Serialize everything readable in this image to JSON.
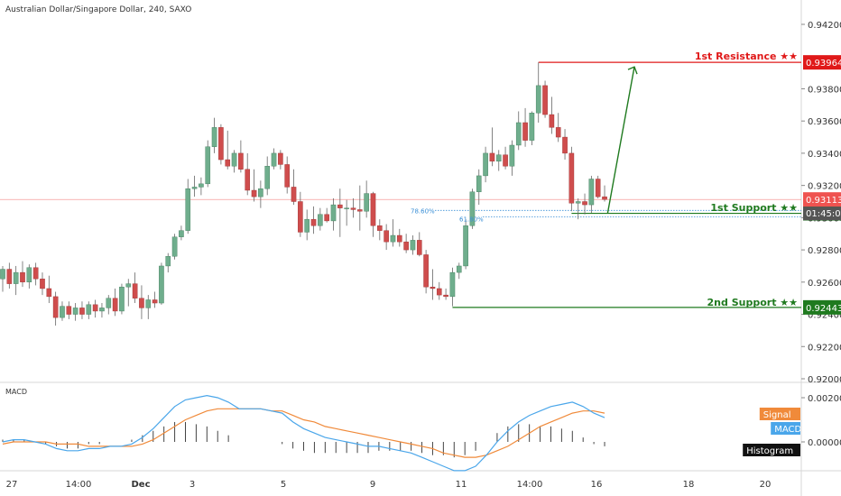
{
  "header": {
    "symbol": "Australian Dollar/Singapore Dollar, 240, SAXO"
  },
  "macd_panel": {
    "title": "MACD"
  },
  "colors": {
    "up": "#6fae8d",
    "down": "#cf4d4d",
    "resistance": "#e01919",
    "support": "#1f7a1f",
    "current": "#ef5350",
    "fib": "#3a8fd6",
    "macd_line": "#4aa6ea",
    "signal_line": "#f08a3a",
    "hist": "#444444"
  },
  "chart_data": [
    {
      "type": "candlestick",
      "title": "",
      "xlabel": "",
      "ylabel": "",
      "ylim": [
        0.92,
        0.943
      ],
      "y_ticks": [
        "0.94200",
        "0.93800",
        "0.93600",
        "0.93400",
        "0.93200",
        "0.93000",
        "0.92800",
        "0.92600",
        "0.92400",
        "0.92200",
        "0.92000"
      ],
      "x_tick_labels": [
        "27",
        "14:00",
        "Dec",
        "3",
        "5",
        "9",
        "11",
        "14:00",
        "16",
        "18",
        "20"
      ],
      "candles": [
        {
          "o": 0.9262,
          "h": 0.927,
          "l": 0.9254,
          "c": 0.9268
        },
        {
          "o": 0.9268,
          "h": 0.9272,
          "l": 0.9256,
          "c": 0.9259
        },
        {
          "o": 0.9259,
          "h": 0.927,
          "l": 0.9252,
          "c": 0.9266
        },
        {
          "o": 0.9266,
          "h": 0.9273,
          "l": 0.9257,
          "c": 0.926
        },
        {
          "o": 0.926,
          "h": 0.9271,
          "l": 0.9256,
          "c": 0.9269
        },
        {
          "o": 0.9269,
          "h": 0.9272,
          "l": 0.9258,
          "c": 0.9262
        },
        {
          "o": 0.9262,
          "h": 0.9266,
          "l": 0.9252,
          "c": 0.9256
        },
        {
          "o": 0.9256,
          "h": 0.9264,
          "l": 0.9247,
          "c": 0.9251
        },
        {
          "o": 0.9251,
          "h": 0.9254,
          "l": 0.9233,
          "c": 0.9238
        },
        {
          "o": 0.9238,
          "h": 0.9248,
          "l": 0.9236,
          "c": 0.9245
        },
        {
          "o": 0.9245,
          "h": 0.9248,
          "l": 0.9237,
          "c": 0.924
        },
        {
          "o": 0.924,
          "h": 0.9247,
          "l": 0.9236,
          "c": 0.9244
        },
        {
          "o": 0.9244,
          "h": 0.9248,
          "l": 0.9237,
          "c": 0.924
        },
        {
          "o": 0.924,
          "h": 0.9248,
          "l": 0.9237,
          "c": 0.9246
        },
        {
          "o": 0.9246,
          "h": 0.9249,
          "l": 0.9238,
          "c": 0.9242
        },
        {
          "o": 0.9242,
          "h": 0.9247,
          "l": 0.9238,
          "c": 0.9244
        },
        {
          "o": 0.9244,
          "h": 0.9252,
          "l": 0.924,
          "c": 0.925
        },
        {
          "o": 0.925,
          "h": 0.9256,
          "l": 0.9239,
          "c": 0.9242
        },
        {
          "o": 0.9242,
          "h": 0.9259,
          "l": 0.924,
          "c": 0.9257
        },
        {
          "o": 0.9257,
          "h": 0.9262,
          "l": 0.9245,
          "c": 0.9259
        },
        {
          "o": 0.9259,
          "h": 0.9266,
          "l": 0.9247,
          "c": 0.925
        },
        {
          "o": 0.925,
          "h": 0.9258,
          "l": 0.9237,
          "c": 0.9244
        },
        {
          "o": 0.9244,
          "h": 0.9252,
          "l": 0.9237,
          "c": 0.9249
        },
        {
          "o": 0.9249,
          "h": 0.9254,
          "l": 0.9244,
          "c": 0.9247
        },
        {
          "o": 0.9247,
          "h": 0.9272,
          "l": 0.9246,
          "c": 0.927
        },
        {
          "o": 0.927,
          "h": 0.9278,
          "l": 0.9266,
          "c": 0.9276
        },
        {
          "o": 0.9276,
          "h": 0.929,
          "l": 0.9274,
          "c": 0.9288
        },
        {
          "o": 0.9288,
          "h": 0.9295,
          "l": 0.9286,
          "c": 0.9292
        },
        {
          "o": 0.9292,
          "h": 0.9324,
          "l": 0.929,
          "c": 0.9318
        },
        {
          "o": 0.9318,
          "h": 0.9326,
          "l": 0.9313,
          "c": 0.9319
        },
        {
          "o": 0.9319,
          "h": 0.9325,
          "l": 0.9314,
          "c": 0.9321
        },
        {
          "o": 0.9321,
          "h": 0.9348,
          "l": 0.9319,
          "c": 0.9344
        },
        {
          "o": 0.9344,
          "h": 0.9362,
          "l": 0.934,
          "c": 0.9356
        },
        {
          "o": 0.9356,
          "h": 0.9358,
          "l": 0.9333,
          "c": 0.9336
        },
        {
          "o": 0.9336,
          "h": 0.9354,
          "l": 0.933,
          "c": 0.9332
        },
        {
          "o": 0.9332,
          "h": 0.9342,
          "l": 0.9328,
          "c": 0.934
        },
        {
          "o": 0.934,
          "h": 0.9348,
          "l": 0.9328,
          "c": 0.933
        },
        {
          "o": 0.933,
          "h": 0.934,
          "l": 0.9314,
          "c": 0.9317
        },
        {
          "o": 0.9317,
          "h": 0.933,
          "l": 0.931,
          "c": 0.9313
        },
        {
          "o": 0.9313,
          "h": 0.9323,
          "l": 0.9306,
          "c": 0.9318
        },
        {
          "o": 0.9318,
          "h": 0.9338,
          "l": 0.9314,
          "c": 0.9332
        },
        {
          "o": 0.9332,
          "h": 0.9343,
          "l": 0.933,
          "c": 0.934
        },
        {
          "o": 0.934,
          "h": 0.9342,
          "l": 0.933,
          "c": 0.9333
        },
        {
          "o": 0.9333,
          "h": 0.9338,
          "l": 0.9315,
          "c": 0.9319
        },
        {
          "o": 0.9319,
          "h": 0.933,
          "l": 0.9308,
          "c": 0.931
        },
        {
          "o": 0.931,
          "h": 0.9316,
          "l": 0.9288,
          "c": 0.9291
        },
        {
          "o": 0.9291,
          "h": 0.9305,
          "l": 0.9286,
          "c": 0.9299
        },
        {
          "o": 0.9299,
          "h": 0.9307,
          "l": 0.929,
          "c": 0.9295
        },
        {
          "o": 0.9295,
          "h": 0.9306,
          "l": 0.9292,
          "c": 0.9302
        },
        {
          "o": 0.9302,
          "h": 0.9306,
          "l": 0.9297,
          "c": 0.9298
        },
        {
          "o": 0.9298,
          "h": 0.9312,
          "l": 0.9292,
          "c": 0.9308
        },
        {
          "o": 0.9308,
          "h": 0.9318,
          "l": 0.9288,
          "c": 0.9306
        },
        {
          "o": 0.9306,
          "h": 0.9311,
          "l": 0.9295,
          "c": 0.9306
        },
        {
          "o": 0.9306,
          "h": 0.9312,
          "l": 0.93,
          "c": 0.9305
        },
        {
          "o": 0.9305,
          "h": 0.932,
          "l": 0.9292,
          "c": 0.9304
        },
        {
          "o": 0.9304,
          "h": 0.9323,
          "l": 0.93,
          "c": 0.9315
        },
        {
          "o": 0.9315,
          "h": 0.9316,
          "l": 0.9288,
          "c": 0.9295
        },
        {
          "o": 0.9295,
          "h": 0.9299,
          "l": 0.9286,
          "c": 0.9292
        },
        {
          "o": 0.9292,
          "h": 0.9296,
          "l": 0.928,
          "c": 0.9285
        },
        {
          "o": 0.9285,
          "h": 0.9299,
          "l": 0.9282,
          "c": 0.9289
        },
        {
          "o": 0.9289,
          "h": 0.9293,
          "l": 0.9282,
          "c": 0.9285
        },
        {
          "o": 0.9285,
          "h": 0.929,
          "l": 0.9278,
          "c": 0.928
        },
        {
          "o": 0.928,
          "h": 0.9289,
          "l": 0.9277,
          "c": 0.9286
        },
        {
          "o": 0.9286,
          "h": 0.9291,
          "l": 0.9276,
          "c": 0.9277
        },
        {
          "o": 0.9277,
          "h": 0.928,
          "l": 0.9253,
          "c": 0.9257
        },
        {
          "o": 0.9257,
          "h": 0.9268,
          "l": 0.9249,
          "c": 0.9256
        },
        {
          "o": 0.9256,
          "h": 0.926,
          "l": 0.9249,
          "c": 0.9252
        },
        {
          "o": 0.9252,
          "h": 0.9256,
          "l": 0.9249,
          "c": 0.9251
        },
        {
          "o": 0.9251,
          "h": 0.9269,
          "l": 0.9245,
          "c": 0.9266
        },
        {
          "o": 0.9266,
          "h": 0.9272,
          "l": 0.9262,
          "c": 0.927
        },
        {
          "o": 0.927,
          "h": 0.9299,
          "l": 0.9268,
          "c": 0.9295
        },
        {
          "o": 0.9295,
          "h": 0.9318,
          "l": 0.9293,
          "c": 0.9316
        },
        {
          "o": 0.9316,
          "h": 0.933,
          "l": 0.9308,
          "c": 0.9326
        },
        {
          "o": 0.9326,
          "h": 0.9344,
          "l": 0.9322,
          "c": 0.934
        },
        {
          "o": 0.934,
          "h": 0.9356,
          "l": 0.9332,
          "c": 0.9335
        },
        {
          "o": 0.9335,
          "h": 0.9342,
          "l": 0.9329,
          "c": 0.9339
        },
        {
          "o": 0.9339,
          "h": 0.9344,
          "l": 0.933,
          "c": 0.9332
        },
        {
          "o": 0.9332,
          "h": 0.9348,
          "l": 0.9326,
          "c": 0.9345
        },
        {
          "o": 0.9345,
          "h": 0.9366,
          "l": 0.9342,
          "c": 0.9359
        },
        {
          "o": 0.9359,
          "h": 0.9368,
          "l": 0.9344,
          "c": 0.9348
        },
        {
          "o": 0.9348,
          "h": 0.9366,
          "l": 0.9345,
          "c": 0.9365
        },
        {
          "o": 0.9365,
          "h": 0.93964,
          "l": 0.9359,
          "c": 0.9382
        },
        {
          "o": 0.9382,
          "h": 0.9385,
          "l": 0.9362,
          "c": 0.9364
        },
        {
          "o": 0.9364,
          "h": 0.9375,
          "l": 0.9352,
          "c": 0.9356
        },
        {
          "o": 0.9356,
          "h": 0.9365,
          "l": 0.9347,
          "c": 0.935
        },
        {
          "o": 0.935,
          "h": 0.9355,
          "l": 0.9336,
          "c": 0.934
        },
        {
          "o": 0.934,
          "h": 0.9344,
          "l": 0.9304,
          "c": 0.9309
        },
        {
          "o": 0.9309,
          "h": 0.9312,
          "l": 0.9299,
          "c": 0.931
        },
        {
          "o": 0.931,
          "h": 0.9315,
          "l": 0.9302,
          "c": 0.9308
        },
        {
          "o": 0.9308,
          "h": 0.9326,
          "l": 0.9303,
          "c": 0.9324
        },
        {
          "o": 0.9324,
          "h": 0.9326,
          "l": 0.9312,
          "c": 0.9313
        },
        {
          "o": 0.9313,
          "h": 0.932,
          "l": 0.931,
          "c": 0.93113
        }
      ],
      "levels": [
        {
          "name": "1st Resistance ★★",
          "value": 0.93964,
          "label": "0.93964",
          "kind": "resistance"
        },
        {
          "name": "1st Support ★★",
          "value": 0.93027,
          "label": "0.93027",
          "kind": "support"
        },
        {
          "name": "2nd Support ★★",
          "value": 0.92443,
          "label": "0.92443",
          "kind": "support"
        }
      ],
      "fib_labels": [
        "78.60%",
        "61.80%"
      ],
      "current_price": {
        "value": 0.93113,
        "label": "0.93113",
        "countdown": "01:45:08"
      }
    },
    {
      "type": "line",
      "title": "MACD",
      "ylim": [
        -0.0026,
        0.0026
      ],
      "y_ticks": [
        "0.00200",
        "0.00000"
      ],
      "legend": [
        "Signal",
        "MACD",
        "Histogram"
      ],
      "macd": [
        0.0,
        0.0001,
        0.0001,
        0.0,
        -0.0001,
        -0.0003,
        -0.0004,
        -0.0004,
        -0.0003,
        -0.0003,
        -0.0002,
        -0.0002,
        -0.0001,
        0.0002,
        0.0006,
        0.0011,
        0.0016,
        0.0019,
        0.002,
        0.0021,
        0.002,
        0.0018,
        0.0015,
        0.0015,
        0.0015,
        0.0014,
        0.0013,
        0.0009,
        0.0006,
        0.0004,
        0.0002,
        0.0001,
        0.0,
        -0.0001,
        -0.0002,
        -0.0002,
        -0.0003,
        -0.0004,
        -0.0005,
        -0.0007,
        -0.0009,
        -0.0011,
        -0.0013,
        -0.0013,
        -0.0011,
        -0.0006,
        0.0,
        0.0005,
        0.0009,
        0.0012,
        0.0014,
        0.0016,
        0.0017,
        0.0018,
        0.0016,
        0.0013,
        0.0011
      ],
      "signal": [
        -0.0001,
        0.0,
        0.0,
        0.0,
        0.0,
        -0.0001,
        -0.0001,
        -0.0001,
        -0.0002,
        -0.0002,
        -0.0002,
        -0.0002,
        -0.0002,
        -0.0001,
        0.0001,
        0.0004,
        0.0007,
        0.001,
        0.0012,
        0.0014,
        0.0015,
        0.0015,
        0.0015,
        0.0015,
        0.0015,
        0.0014,
        0.0014,
        0.0012,
        0.001,
        0.0009,
        0.0007,
        0.0006,
        0.0005,
        0.0004,
        0.0003,
        0.0002,
        0.0001,
        0.0,
        -0.0001,
        -0.0002,
        -0.0003,
        -0.0005,
        -0.0006,
        -0.0007,
        -0.0007,
        -0.0006,
        -0.0004,
        -0.0002,
        0.0001,
        0.0004,
        0.0007,
        0.0009,
        0.0011,
        0.0013,
        0.0014,
        0.0014,
        0.0013
      ],
      "histogram": [
        0.0001,
        0.0001,
        0.0001,
        0.0,
        -0.0001,
        -0.0002,
        -0.0003,
        -0.0003,
        -0.0001,
        -0.0001,
        0.0,
        0.0,
        0.0001,
        0.0003,
        0.0005,
        0.0007,
        0.0009,
        0.0009,
        0.0008,
        0.0007,
        0.0005,
        0.0003,
        0.0,
        0.0,
        0.0,
        0.0,
        -0.0001,
        -0.0003,
        -0.0004,
        -0.0005,
        -0.0005,
        -0.0005,
        -0.0005,
        -0.0005,
        -0.0005,
        -0.0004,
        -0.0004,
        -0.0004,
        -0.0004,
        -0.0005,
        -0.0006,
        -0.0006,
        -0.0007,
        -0.0006,
        -0.0004,
        0.0,
        0.0004,
        0.0007,
        0.0008,
        0.0008,
        0.0007,
        0.0007,
        0.0006,
        0.0005,
        0.0002,
        -0.0001,
        -0.0002
      ]
    }
  ]
}
